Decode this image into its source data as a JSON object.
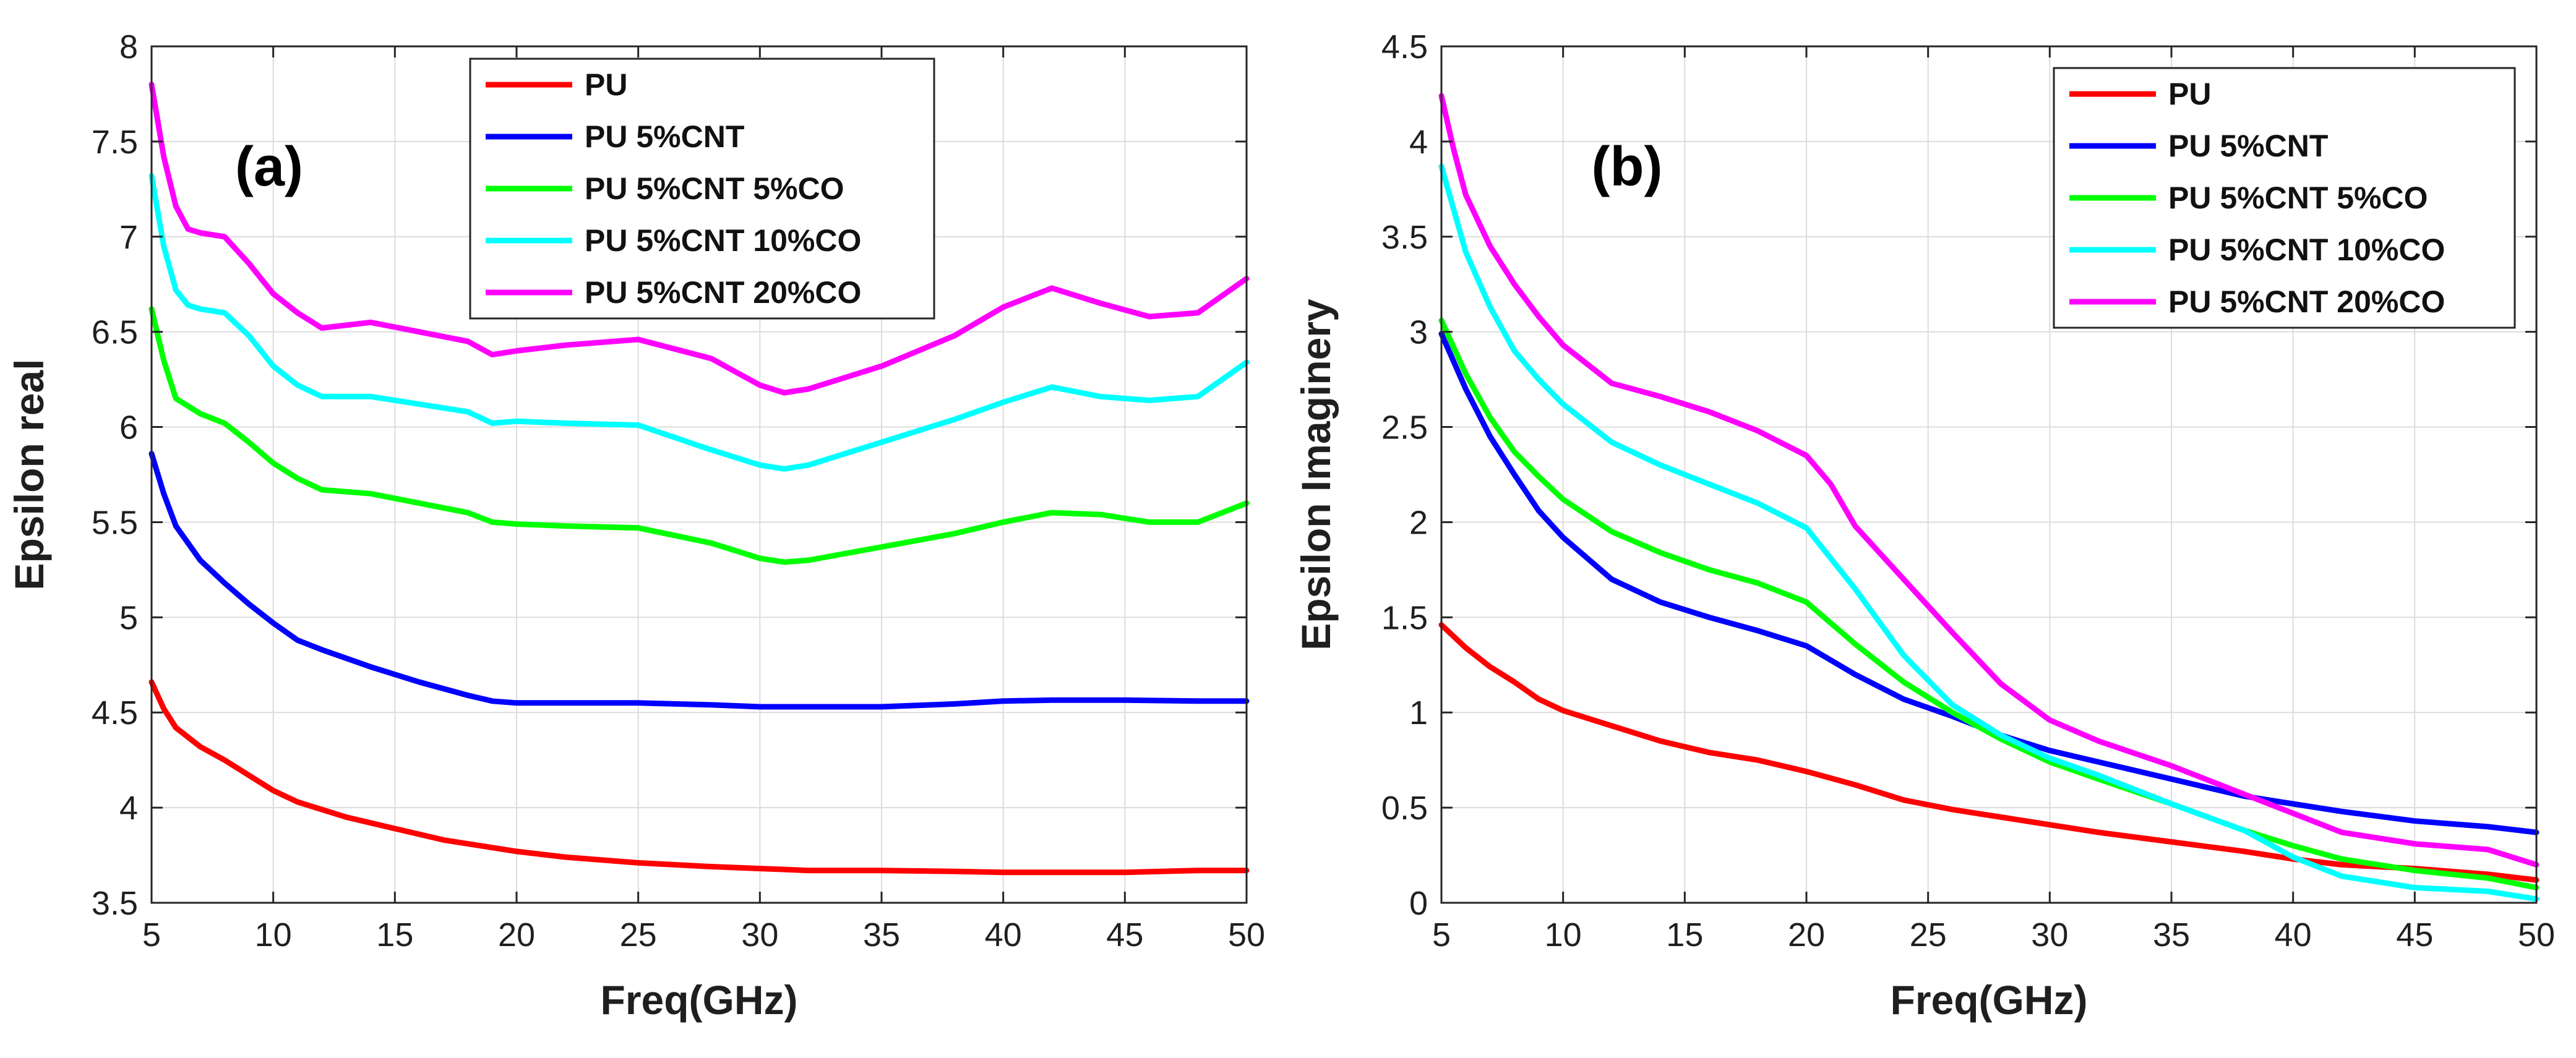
{
  "chart_data": [
    {
      "type": "line",
      "panel_label": "(a)",
      "xlabel": "Freq(GHz)",
      "ylabel": "Epsilon real",
      "xlim": [
        5,
        50
      ],
      "ylim": [
        3.5,
        8
      ],
      "xticks": [
        5,
        10,
        15,
        20,
        25,
        30,
        35,
        40,
        45,
        50
      ],
      "yticks": [
        3.5,
        4,
        4.5,
        5,
        5.5,
        6,
        6.5,
        7,
        7.5,
        8
      ],
      "grid": true,
      "legend_position": "top-center",
      "series": [
        {
          "name": "PU",
          "color": "#ff0000",
          "x": [
            5,
            5.5,
            6,
            7,
            8,
            9,
            10,
            11,
            12,
            13,
            15,
            17,
            18,
            20,
            22,
            25,
            28,
            30,
            32,
            35,
            38,
            40,
            42,
            45,
            48,
            50
          ],
          "y": [
            4.66,
            4.52,
            4.42,
            4.32,
            4.25,
            4.17,
            4.09,
            4.03,
            3.99,
            3.95,
            3.89,
            3.83,
            3.81,
            3.77,
            3.74,
            3.71,
            3.69,
            3.68,
            3.67,
            3.67,
            3.665,
            3.66,
            3.66,
            3.66,
            3.67,
            3.67
          ]
        },
        {
          "name": "PU 5%CNT",
          "color": "#0000ff",
          "x": [
            5,
            5.5,
            6,
            7,
            8,
            9,
            10,
            11,
            12,
            14,
            16,
            18,
            19,
            20,
            22,
            25,
            28,
            30,
            32,
            35,
            38,
            40,
            42,
            45,
            48,
            50
          ],
          "y": [
            5.86,
            5.65,
            5.48,
            5.3,
            5.18,
            5.07,
            4.97,
            4.88,
            4.83,
            4.74,
            4.66,
            4.59,
            4.56,
            4.55,
            4.55,
            4.55,
            4.54,
            4.53,
            4.53,
            4.53,
            4.545,
            4.56,
            4.565,
            4.565,
            4.56,
            4.56
          ]
        },
        {
          "name": "PU 5%CNT 5%CO",
          "color": "#00ff00",
          "x": [
            5,
            5.5,
            6,
            7,
            8,
            9,
            10,
            11,
            12,
            14,
            16,
            18,
            19,
            20,
            22,
            25,
            28,
            30,
            31,
            32,
            35,
            38,
            40,
            42,
            44,
            46,
            48,
            50
          ],
          "y": [
            6.62,
            6.35,
            6.15,
            6.07,
            6.02,
            5.92,
            5.81,
            5.73,
            5.67,
            5.65,
            5.6,
            5.55,
            5.5,
            5.49,
            5.48,
            5.47,
            5.39,
            5.31,
            5.29,
            5.3,
            5.37,
            5.44,
            5.5,
            5.55,
            5.54,
            5.5,
            5.5,
            5.6
          ]
        },
        {
          "name": "PU 5%CNT 10%CO",
          "color": "#00ffff",
          "x": [
            5,
            5.5,
            6,
            6.5,
            7,
            8,
            9,
            10,
            11,
            12,
            14,
            16,
            18,
            19,
            20,
            22,
            25,
            28,
            30,
            31,
            32,
            35,
            38,
            40,
            42,
            44,
            46,
            48,
            50
          ],
          "y": [
            7.32,
            6.95,
            6.72,
            6.64,
            6.62,
            6.6,
            6.48,
            6.32,
            6.22,
            6.16,
            6.16,
            6.12,
            6.08,
            6.02,
            6.03,
            6.02,
            6.01,
            5.88,
            5.8,
            5.78,
            5.8,
            5.92,
            6.04,
            6.13,
            6.21,
            6.16,
            6.14,
            6.16,
            6.34
          ]
        },
        {
          "name": "PU 5%CNT 20%CO",
          "color": "#ff00ff",
          "x": [
            5,
            5.5,
            6,
            6.5,
            7,
            8,
            9,
            10,
            11,
            12,
            14,
            16,
            18,
            19,
            20,
            22,
            25,
            28,
            30,
            31,
            32,
            35,
            38,
            40,
            42,
            44,
            46,
            48,
            50
          ],
          "y": [
            7.8,
            7.42,
            7.16,
            7.04,
            7.02,
            7.0,
            6.86,
            6.7,
            6.6,
            6.52,
            6.55,
            6.5,
            6.45,
            6.38,
            6.4,
            6.43,
            6.46,
            6.36,
            6.22,
            6.18,
            6.2,
            6.32,
            6.48,
            6.63,
            6.73,
            6.65,
            6.58,
            6.6,
            6.78
          ]
        }
      ]
    },
    {
      "type": "line",
      "panel_label": "(b)",
      "xlabel": "Freq(GHz)",
      "ylabel": "Epsilon Imaginery",
      "xlim": [
        5,
        50
      ],
      "ylim": [
        0,
        4.5
      ],
      "xticks": [
        5,
        10,
        15,
        20,
        25,
        30,
        35,
        40,
        45,
        50
      ],
      "yticks": [
        0,
        0.5,
        1,
        1.5,
        2,
        2.5,
        3,
        3.5,
        4,
        4.5
      ],
      "grid": true,
      "legend_position": "top-right",
      "series": [
        {
          "name": "PU",
          "color": "#ff0000",
          "x": [
            5,
            6,
            7,
            8,
            9,
            10,
            12,
            14,
            16,
            18,
            20,
            22,
            24,
            26,
            28,
            30,
            32,
            35,
            38,
            40,
            42,
            45,
            48,
            50
          ],
          "y": [
            1.46,
            1.34,
            1.24,
            1.16,
            1.07,
            1.01,
            0.93,
            0.85,
            0.79,
            0.75,
            0.69,
            0.62,
            0.54,
            0.49,
            0.45,
            0.41,
            0.37,
            0.32,
            0.27,
            0.23,
            0.2,
            0.18,
            0.15,
            0.12
          ]
        },
        {
          "name": "PU 5%CNT",
          "color": "#0000ff",
          "x": [
            5,
            6,
            7,
            8,
            9,
            10,
            12,
            14,
            16,
            18,
            20,
            22,
            24,
            26,
            28,
            30,
            32,
            35,
            38,
            40,
            42,
            45,
            48,
            50
          ],
          "y": [
            2.99,
            2.7,
            2.45,
            2.25,
            2.06,
            1.92,
            1.7,
            1.58,
            1.5,
            1.43,
            1.35,
            1.2,
            1.07,
            0.98,
            0.88,
            0.8,
            0.74,
            0.65,
            0.56,
            0.52,
            0.48,
            0.43,
            0.4,
            0.37
          ]
        },
        {
          "name": "PU 5%CNT 5%CO",
          "color": "#00ff00",
          "x": [
            5,
            6,
            7,
            8,
            9,
            10,
            12,
            14,
            16,
            18,
            20,
            22,
            24,
            26,
            28,
            30,
            32,
            35,
            38,
            40,
            42,
            45,
            48,
            50
          ],
          "y": [
            3.06,
            2.78,
            2.55,
            2.37,
            2.24,
            2.12,
            1.95,
            1.84,
            1.75,
            1.68,
            1.58,
            1.36,
            1.16,
            1.0,
            0.86,
            0.74,
            0.65,
            0.52,
            0.38,
            0.3,
            0.23,
            0.17,
            0.13,
            0.08
          ]
        },
        {
          "name": "PU 5%CNT 10%CO",
          "color": "#00ffff",
          "x": [
            5,
            6,
            7,
            8,
            9,
            10,
            12,
            14,
            16,
            18,
            20,
            22,
            24,
            26,
            28,
            30,
            32,
            35,
            38,
            40,
            42,
            45,
            48,
            50
          ],
          "y": [
            3.87,
            3.42,
            3.13,
            2.9,
            2.75,
            2.62,
            2.42,
            2.3,
            2.2,
            2.1,
            1.97,
            1.65,
            1.3,
            1.04,
            0.88,
            0.76,
            0.67,
            0.52,
            0.38,
            0.24,
            0.14,
            0.08,
            0.06,
            0.02
          ]
        },
        {
          "name": "PU 5%CNT 20%CO",
          "color": "#ff00ff",
          "x": [
            5,
            5.5,
            6,
            7,
            8,
            9,
            10,
            12,
            14,
            16,
            18,
            20,
            21,
            22,
            24,
            26,
            28,
            30,
            32,
            35,
            38,
            40,
            42,
            45,
            48,
            50
          ],
          "y": [
            4.24,
            3.96,
            3.72,
            3.45,
            3.25,
            3.08,
            2.93,
            2.73,
            2.66,
            2.58,
            2.48,
            2.35,
            2.2,
            1.98,
            1.7,
            1.42,
            1.15,
            0.96,
            0.85,
            0.72,
            0.57,
            0.47,
            0.37,
            0.31,
            0.28,
            0.2
          ]
        }
      ]
    }
  ]
}
